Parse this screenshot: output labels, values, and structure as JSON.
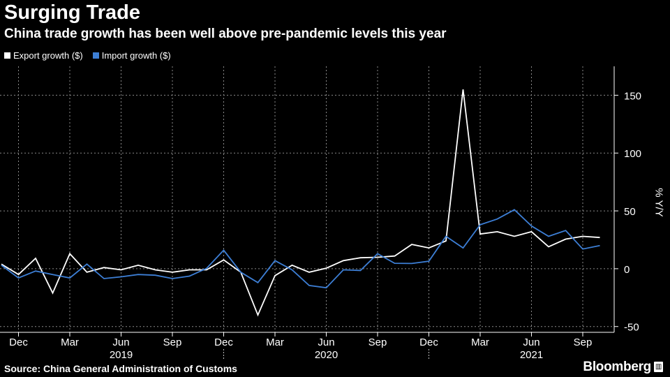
{
  "title": "Surging Trade",
  "subtitle": "China trade growth has been well above pre-pandemic levels this year",
  "source": "Source: China General Administration of Customs",
  "brand": "Bloomberg",
  "colors": {
    "background": "#000000",
    "export": "#ffffff",
    "import": "#3d7fd6",
    "grid": "#8a8a8a"
  },
  "chart_data": {
    "type": "line",
    "ylabel": "% Y/Y",
    "ylim": [
      -55,
      175
    ],
    "yticks": [
      150,
      100,
      50,
      0,
      -50
    ],
    "grid": true,
    "legend_position": "top-left",
    "x_start": "2018-11",
    "x": [
      "2018-11",
      "2018-12",
      "2019-01",
      "2019-02",
      "2019-03",
      "2019-04",
      "2019-05",
      "2019-06",
      "2019-07",
      "2019-08",
      "2019-09",
      "2019-10",
      "2019-11",
      "2019-12",
      "2020-01",
      "2020-02",
      "2020-03",
      "2020-04",
      "2020-05",
      "2020-06",
      "2020-07",
      "2020-08",
      "2020-09",
      "2020-10",
      "2020-11",
      "2020-12",
      "2021-01",
      "2021-02",
      "2021-03",
      "2021-04",
      "2021-05",
      "2021-06",
      "2021-07",
      "2021-08",
      "2021-09",
      "2021-10"
    ],
    "x_tick_labels": [
      "Dec",
      "Mar",
      "Jun",
      "Sep",
      "Dec",
      "Mar",
      "Jun",
      "Sep",
      "Dec",
      "Mar",
      "Jun",
      "Sep"
    ],
    "x_tick_months": [
      "2018-12",
      "2019-03",
      "2019-06",
      "2019-09",
      "2019-12",
      "2020-03",
      "2020-06",
      "2020-09",
      "2020-12",
      "2021-03",
      "2021-06",
      "2021-09"
    ],
    "years": [
      {
        "label": "2019",
        "center": "2019-06"
      },
      {
        "label": "2020",
        "center": "2020-06"
      },
      {
        "label": "2021",
        "center": "2021-06"
      }
    ],
    "series": [
      {
        "name": "Export growth ($)",
        "values": [
          4,
          -5,
          9,
          -21,
          13,
          -3,
          1,
          -1,
          3,
          -1,
          -3,
          -1,
          -1,
          7.6,
          -3,
          -40,
          -6,
          3,
          -3,
          0.5,
          7,
          9.5,
          9.9,
          11,
          21,
          18,
          24,
          155,
          30,
          32,
          28,
          32,
          19,
          25.6,
          28,
          27
        ]
      },
      {
        "name": "Import growth ($)",
        "values": [
          3,
          -8,
          -2,
          -5,
          -8,
          4,
          -8.5,
          -7,
          -5,
          -5.6,
          -8.5,
          -6.4,
          0.3,
          16,
          -3,
          -12,
          7,
          -1,
          -14.5,
          -16.5,
          -1,
          -1.5,
          13,
          4.7,
          4.5,
          6.5,
          28,
          18,
          38,
          43,
          51,
          37,
          28,
          33,
          17,
          20
        ]
      }
    ]
  }
}
